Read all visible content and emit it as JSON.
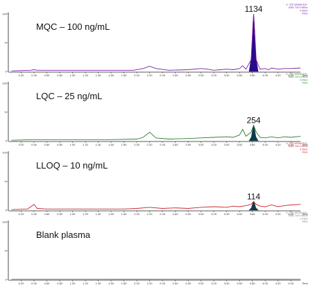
{
  "chart_data": {
    "type": "line",
    "x_axis_label": "Time",
    "x_ticks": [
      "0.20",
      "0.40",
      "0.60",
      "0.80",
      "1.00",
      "1.20",
      "1.40",
      "1.60",
      "1.80",
      "2.00",
      "2.20",
      "2.40",
      "2.60",
      "2.80",
      "3.00",
      "3.20",
      "3.40",
      "3.60",
      "3.80",
      "4.00",
      "4.20",
      "4.40"
    ],
    "xlim": [
      0,
      4.55
    ],
    "panels": [
      {
        "title": "MQC – 100 ng/mL",
        "color": "#7b1fa2",
        "fill_color": "#2a0a8a",
        "y_ticks": [
          "0",
          "%",
          "100"
        ],
        "info": [
          "2: TOF MSMS ES+",
          "1062.716 0.05Da",
          "4.30e4",
          "Area"
        ],
        "peak": {
          "label": "1134",
          "rt": 3.82,
          "height": 100
        },
        "trace": [
          [
            0.05,
            1
          ],
          [
            0.35,
            2
          ],
          [
            0.4,
            3
          ],
          [
            0.45,
            2
          ],
          [
            0.8,
            2
          ],
          [
            1.2,
            2
          ],
          [
            1.6,
            2
          ],
          [
            1.95,
            2
          ],
          [
            2.1,
            5
          ],
          [
            2.2,
            9
          ],
          [
            2.3,
            5
          ],
          [
            2.5,
            2
          ],
          [
            2.8,
            3
          ],
          [
            3.0,
            5
          ],
          [
            3.1,
            4
          ],
          [
            3.2,
            2
          ],
          [
            3.3,
            3
          ],
          [
            3.4,
            4
          ],
          [
            3.5,
            3
          ],
          [
            3.6,
            5
          ],
          [
            3.65,
            10
          ],
          [
            3.7,
            4
          ],
          [
            3.78,
            20
          ],
          [
            3.82,
            100
          ],
          [
            3.86,
            20
          ],
          [
            3.92,
            4
          ],
          [
            4.0,
            5
          ],
          [
            4.05,
            3
          ],
          [
            4.1,
            6
          ],
          [
            4.2,
            4
          ],
          [
            4.3,
            5
          ],
          [
            4.4,
            5
          ],
          [
            4.55,
            6
          ]
        ]
      },
      {
        "title": "LQC – 25 ng/mL",
        "color": "#2e7d32",
        "fill_color": "#0d3a4a",
        "y_ticks": [
          "0",
          "%",
          "100"
        ],
        "info": [
          "2: TOF MSMS ES+",
          "1062.716 0.05Da",
          "9.29e3",
          "Area"
        ],
        "peak": {
          "label": "254",
          "rt": 3.82,
          "height": 27
        },
        "trace": [
          [
            0.05,
            1
          ],
          [
            0.4,
            2
          ],
          [
            0.8,
            2
          ],
          [
            1.2,
            2
          ],
          [
            1.6,
            2
          ],
          [
            2.0,
            3
          ],
          [
            2.1,
            6
          ],
          [
            2.2,
            15
          ],
          [
            2.3,
            5
          ],
          [
            2.5,
            3
          ],
          [
            2.8,
            4
          ],
          [
            3.0,
            5
          ],
          [
            3.2,
            6
          ],
          [
            3.4,
            7
          ],
          [
            3.5,
            6
          ],
          [
            3.6,
            10
          ],
          [
            3.65,
            20
          ],
          [
            3.7,
            8
          ],
          [
            3.78,
            15
          ],
          [
            3.82,
            27
          ],
          [
            3.86,
            15
          ],
          [
            3.92,
            6
          ],
          [
            4.0,
            5
          ],
          [
            4.1,
            7
          ],
          [
            4.2,
            5
          ],
          [
            4.3,
            7
          ],
          [
            4.4,
            6
          ],
          [
            4.55,
            8
          ]
        ]
      },
      {
        "title": "LLOQ – 10 ng/mL",
        "color": "#c62828",
        "fill_color": "#0d3a4a",
        "y_ticks": [
          "0",
          "%",
          "100"
        ],
        "info": [
          "2: TOF MSMS ES+",
          "1062.716 0.05Da",
          "4.30e3",
          "Area"
        ],
        "peak": {
          "label": "114",
          "rt": 3.82,
          "height": 15
        },
        "trace": [
          [
            0.05,
            1
          ],
          [
            0.3,
            2
          ],
          [
            0.4,
            10
          ],
          [
            0.45,
            3
          ],
          [
            0.6,
            2
          ],
          [
            1.0,
            2
          ],
          [
            1.4,
            2
          ],
          [
            1.8,
            2
          ],
          [
            2.0,
            3
          ],
          [
            2.2,
            5
          ],
          [
            2.4,
            3
          ],
          [
            2.6,
            4
          ],
          [
            2.8,
            3
          ],
          [
            3.0,
            5
          ],
          [
            3.2,
            6
          ],
          [
            3.4,
            5
          ],
          [
            3.5,
            7
          ],
          [
            3.6,
            6
          ],
          [
            3.7,
            8
          ],
          [
            3.78,
            10
          ],
          [
            3.82,
            15
          ],
          [
            3.86,
            10
          ],
          [
            3.92,
            7
          ],
          [
            4.0,
            6
          ],
          [
            4.1,
            9
          ],
          [
            4.2,
            6
          ],
          [
            4.3,
            8
          ],
          [
            4.4,
            9
          ],
          [
            4.55,
            10
          ]
        ]
      },
      {
        "title": "Blank plasma",
        "color": "#7a7a7a",
        "fill_color": "#7a7a7a",
        "y_ticks": [
          "0",
          "%",
          "100"
        ],
        "info": [
          "2: TOF MSMS ES+",
          "1062.716 0.05Da",
          "1.24e3",
          "Area"
        ],
        "peak": null,
        "trace": [
          [
            0.05,
            0.5
          ],
          [
            1.0,
            0.5
          ],
          [
            2.0,
            0.6
          ],
          [
            3.0,
            0.5
          ],
          [
            4.0,
            0.6
          ],
          [
            4.55,
            0.5
          ]
        ]
      }
    ]
  }
}
